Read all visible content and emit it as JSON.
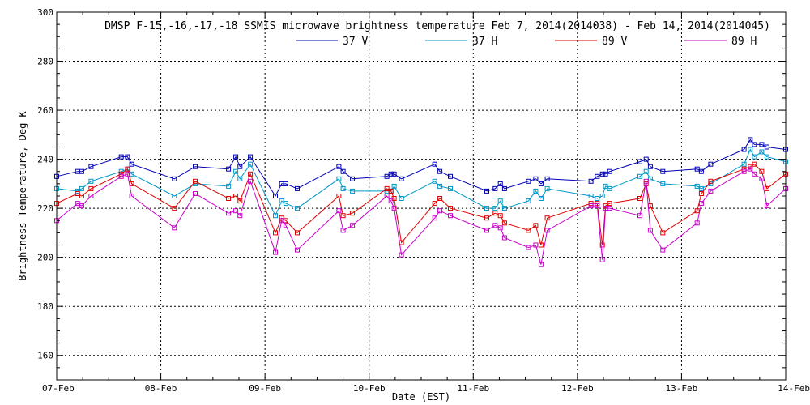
{
  "chart_data": {
    "type": "line",
    "title": "DMSP F-15,-16,-17,-18 SSMIS microwave brightness temperature Feb  7, 2014(2014038) - Feb 14, 2014(2014045)",
    "xlabel": "Date (EST)",
    "ylabel": "Brightness Temperature, Deg K",
    "xlim": [
      0,
      7
    ],
    "ylim": [
      150,
      300
    ],
    "x_ticks": [
      {
        "x": 0,
        "label": "07-Feb"
      },
      {
        "x": 1,
        "label": "08-Feb"
      },
      {
        "x": 2,
        "label": "09-Feb"
      },
      {
        "x": 3,
        "label": "10-Feb"
      },
      {
        "x": 4,
        "label": "11-Feb"
      },
      {
        "x": 5,
        "label": "12-Feb"
      },
      {
        "x": 6,
        "label": "13-Feb"
      },
      {
        "x": 7,
        "label": "14-Feb"
      }
    ],
    "y_ticks": [
      160,
      180,
      200,
      220,
      240,
      260,
      280,
      300
    ],
    "grid": true,
    "legend_position": "top-center",
    "x": [
      0.0,
      0.2,
      0.24,
      0.33,
      0.62,
      0.68,
      0.72,
      1.13,
      1.33,
      1.65,
      1.72,
      1.76,
      1.86,
      2.1,
      2.16,
      2.2,
      2.31,
      2.71,
      2.75,
      2.84,
      3.17,
      3.21,
      3.24,
      3.31,
      3.63,
      3.68,
      3.78,
      4.13,
      4.21,
      4.26,
      4.3,
      4.53,
      4.6,
      4.65,
      4.71,
      5.13,
      5.19,
      5.24,
      5.27,
      5.31,
      5.6,
      5.66,
      5.7,
      5.82,
      6.15,
      6.19,
      6.28,
      6.6,
      6.66,
      6.7,
      6.77,
      6.82,
      7.0
    ],
    "series": [
      {
        "name": "37 V",
        "color": "#0000b4",
        "values": [
          233,
          235,
          235,
          237,
          241,
          241,
          238,
          232,
          237,
          236,
          241,
          237,
          241,
          225,
          230,
          230,
          228,
          237,
          235,
          232,
          233,
          234,
          234,
          232,
          238,
          235,
          233,
          227,
          228,
          230,
          228,
          231,
          232,
          230,
          232,
          231,
          233,
          234,
          234,
          235,
          239,
          240,
          237,
          235,
          236,
          235,
          238,
          244,
          248,
          246,
          246,
          245,
          244
        ]
      },
      {
        "name": "37 H",
        "color": "#0096c8",
        "values": [
          228,
          227,
          228,
          231,
          235,
          236,
          234,
          225,
          230,
          229,
          235,
          232,
          238,
          217,
          223,
          222,
          220,
          232,
          228,
          227,
          227,
          227,
          229,
          224,
          231,
          229,
          228,
          220,
          220,
          223,
          220,
          223,
          227,
          224,
          228,
          225,
          224,
          225,
          229,
          228,
          233,
          235,
          232,
          230,
          229,
          228,
          230,
          238,
          244,
          241,
          243,
          241,
          239
        ]
      },
      {
        "name": "89 V",
        "color": "#e00000",
        "values": [
          222,
          226,
          225,
          228,
          234,
          236,
          230,
          220,
          231,
          224,
          225,
          223,
          234,
          210,
          216,
          215,
          210,
          225,
          217,
          218,
          228,
          227,
          224,
          206,
          222,
          224,
          220,
          216,
          218,
          217,
          214,
          211,
          213,
          205,
          216,
          222,
          222,
          205,
          221,
          222,
          224,
          230,
          221,
          210,
          219,
          226,
          231,
          236,
          237,
          238,
          235,
          228,
          234
        ]
      },
      {
        "name": "89 H",
        "color": "#c800c8",
        "values": [
          215,
          222,
          221,
          225,
          233,
          234,
          225,
          212,
          226,
          218,
          219,
          217,
          231,
          202,
          215,
          213,
          203,
          219,
          211,
          213,
          225,
          223,
          220,
          201,
          216,
          219,
          217,
          211,
          213,
          212,
          208,
          204,
          205,
          197,
          211,
          221,
          221,
          199,
          220,
          220,
          217,
          231,
          211,
          203,
          214,
          222,
          227,
          235,
          236,
          234,
          232,
          221,
          228
        ]
      }
    ]
  }
}
